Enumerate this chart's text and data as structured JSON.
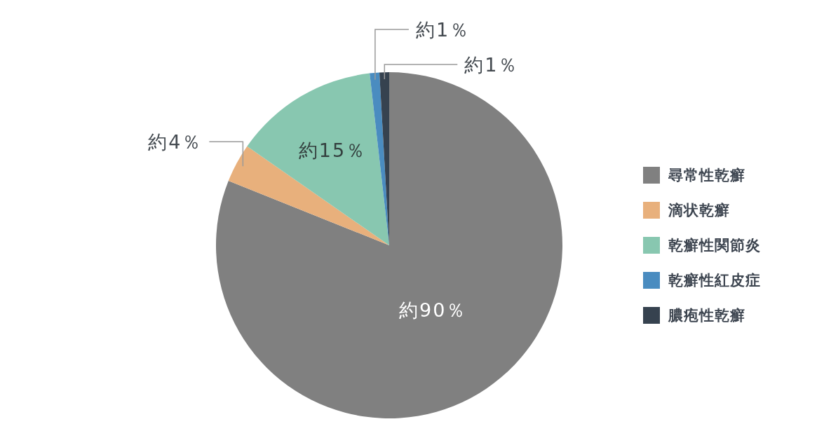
{
  "chart_data": {
    "type": "pie",
    "categories": [
      "尋常性乾癬",
      "滴状乾癬",
      "乾癬性関節炎",
      "乾癬性紅皮症",
      "膿疱性乾癬"
    ],
    "values": [
      90,
      4,
      15,
      1,
      1
    ],
    "colors": [
      "#808080",
      "#e8b07c",
      "#88c7b0",
      "#4a8cc0",
      "#36424f"
    ],
    "value_labels": [
      "約90％",
      "約4％",
      "約15％",
      "約1％",
      "約1％"
    ],
    "legend": "right"
  }
}
